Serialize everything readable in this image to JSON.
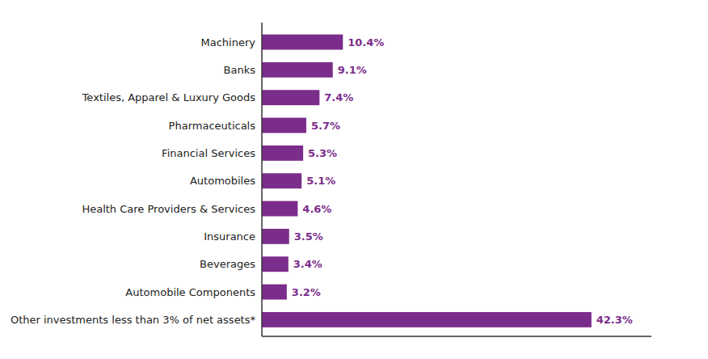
{
  "chart_data": {
    "type": "bar",
    "orientation": "horizontal",
    "categories": [
      "Other investments less than 3% of net assets*",
      "Automobile Components",
      "Beverages",
      "Insurance",
      "Health Care Providers & Services",
      "Automobiles",
      "Financial Services",
      "Pharmaceuticals",
      "Textiles, Apparel & Luxury Goods",
      "Banks",
      "Machinery"
    ],
    "values": [
      42.3,
      3.2,
      3.4,
      3.5,
      4.6,
      5.1,
      5.3,
      5.7,
      7.4,
      9.1,
      10.4
    ],
    "value_labels": [
      "42.3%",
      "3.2%",
      "3.4%",
      "3.5%",
      "4.6%",
      "5.1%",
      "5.3%",
      "5.7%",
      "7.4%",
      "9.1%",
      "10.4%"
    ],
    "color": "#7B2D8B",
    "xlim": [
      0,
      50
    ],
    "data_labels": true,
    "tick_labels": "y",
    "grid": false
  }
}
